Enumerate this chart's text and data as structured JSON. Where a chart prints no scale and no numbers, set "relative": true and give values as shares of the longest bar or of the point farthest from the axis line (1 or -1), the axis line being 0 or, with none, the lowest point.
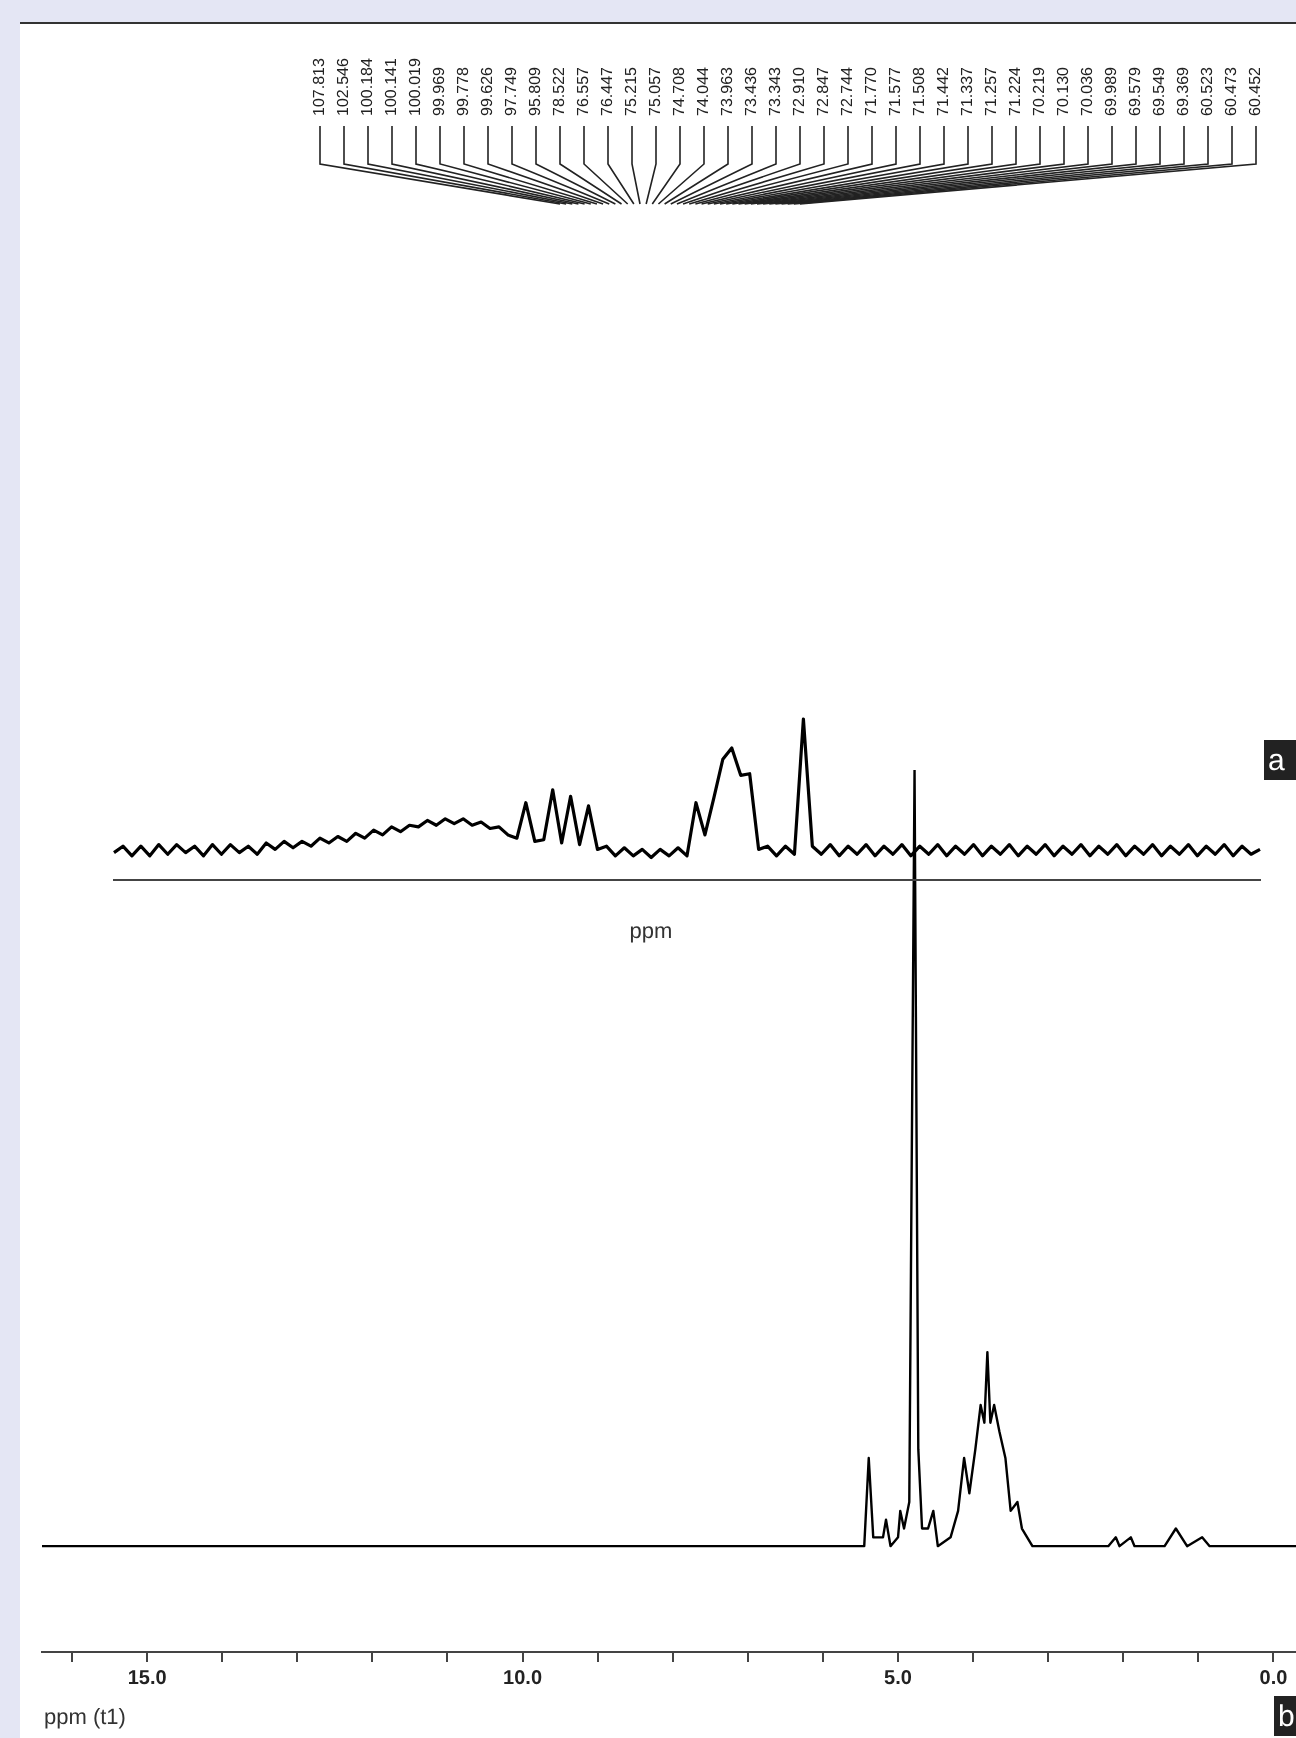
{
  "chart_data": [
    {
      "type": "line",
      "xlabel": "ppm",
      "relative": true,
      "marker": "none",
      "tick_labels": false,
      "categories": [
        null,
        null,
        null,
        null,
        null,
        null,
        null,
        null,
        null,
        null,
        null,
        null,
        null,
        null,
        null,
        null,
        null,
        null,
        null,
        null,
        null,
        null,
        null,
        null,
        null,
        null,
        null,
        null,
        null,
        null,
        null,
        null,
        null,
        null,
        null,
        null,
        null,
        null,
        null,
        null,
        null,
        null,
        null,
        null,
        null,
        null,
        null,
        null,
        null,
        null,
        null,
        null,
        null,
        null,
        null,
        null,
        null,
        null,
        null,
        null,
        null,
        null,
        null,
        null,
        null,
        null,
        null,
        null,
        null,
        null,
        null,
        null,
        null,
        null,
        null,
        null,
        null,
        null,
        null,
        null,
        null,
        null,
        null,
        null,
        null,
        null,
        null,
        null,
        null,
        null,
        null,
        null,
        null,
        null,
        null,
        null,
        null,
        null,
        null,
        null,
        null,
        null,
        null,
        null,
        null,
        null,
        null,
        null,
        null,
        null,
        null,
        null,
        null,
        null,
        null,
        null,
        null,
        null,
        null,
        null,
        null,
        null,
        null,
        null,
        null,
        null,
        null,
        null,
        null
      ],
      "series": [
        {
          "color": "#000000",
          "values": [
            0.17,
            0.21,
            0.15,
            0.21,
            0.15,
            0.22,
            0.16,
            0.22,
            0.17,
            0.21,
            0.15,
            0.22,
            0.16,
            0.22,
            0.17,
            0.21,
            0.16,
            0.23,
            0.19,
            0.24,
            0.2,
            0.24,
            0.21,
            0.26,
            0.23,
            0.27,
            0.24,
            0.29,
            0.26,
            0.31,
            0.28,
            0.33,
            0.3,
            0.34,
            0.33,
            0.37,
            0.34,
            0.38,
            0.35,
            0.38,
            0.34,
            0.36,
            0.32,
            0.33,
            0.28,
            0.26,
            0.48,
            0.24,
            0.25,
            0.56,
            0.23,
            0.52,
            0.22,
            0.46,
            0.19,
            0.21,
            0.15,
            0.2,
            0.15,
            0.19,
            0.14,
            0.19,
            0.15,
            0.2,
            0.15,
            0.48,
            0.28,
            0.51,
            0.75,
            0.82,
            0.65,
            0.66,
            0.19,
            0.21,
            0.15,
            0.21,
            0.16,
            1,
            0.21,
            0.16,
            0.22,
            0.15,
            0.21,
            0.16,
            0.22,
            0.15,
            0.21,
            0.16,
            0.22,
            0.15,
            0.21,
            0.16,
            0.22,
            0.15,
            0.21,
            0.16,
            0.22,
            0.15,
            0.21,
            0.16,
            0.22,
            0.15,
            0.21,
            0.16,
            0.22,
            0.15,
            0.21,
            0.16,
            0.22,
            0.15,
            0.21,
            0.16,
            0.22,
            0.15,
            0.21,
            0.16,
            0.22,
            0.15,
            0.21,
            0.16,
            0.22,
            0.15,
            0.21,
            0.16,
            0.22,
            0.15,
            0.21,
            0.16,
            0.19
          ]
        }
      ],
      "annotations": [
        "107.813",
        "102.546",
        "100.184",
        "100.141",
        "100.019",
        "99.969",
        "99.778",
        "99.626",
        "97.749",
        "95.809",
        "78.522",
        "76.557",
        "76.447",
        "75.215",
        "75.057",
        "74.708",
        "74.044",
        "73.963",
        "73.436",
        "73.343",
        "72.910",
        "72.847",
        "72.744",
        "71.770",
        "71.577",
        "71.508",
        "71.442",
        "71.337",
        "71.257",
        "71.224",
        "70.219",
        "70.130",
        "70.036",
        "69.989",
        "69.579",
        "69.549",
        "69.369",
        "60.523",
        "60.473",
        "60.452",
        "a"
      ]
    },
    {
      "type": "line",
      "xlabel": "ppm (t1)",
      "relative": true,
      "marker": "none",
      "tick_labels": "x",
      "x": [
        16.4,
        5.6,
        5.45,
        5.39,
        5.33,
        5.2,
        5.16,
        5.1,
        5.0,
        4.97,
        4.92,
        4.85,
        4.78,
        4.73,
        4.68,
        4.6,
        4.53,
        4.47,
        4.3,
        4.2,
        4.12,
        4.05,
        3.97,
        3.9,
        3.85,
        3.81,
        3.77,
        3.72,
        3.65,
        3.57,
        3.5,
        3.41,
        3.35,
        3.21,
        2.2,
        2.1,
        2.05,
        1.9,
        1.85,
        1.45,
        1.3,
        1.15,
        0.95,
        0.85,
        -0.3
      ],
      "series": [
        {
          "color": "#000000",
          "values": [
            0.12,
            0.12,
            0.12,
            0.22,
            0.13,
            0.13,
            0.15,
            0.12,
            0.13,
            0.16,
            0.14,
            0.17,
            1,
            0.23,
            0.14,
            0.14,
            0.16,
            0.12,
            0.13,
            0.16,
            0.22,
            0.18,
            0.23,
            0.28,
            0.26,
            0.34,
            0.26,
            0.28,
            0.25,
            0.22,
            0.16,
            0.17,
            0.14,
            0.12,
            0.12,
            0.13,
            0.12,
            0.13,
            0.12,
            0.12,
            0.14,
            0.12,
            0.13,
            0.12,
            0.12
          ]
        }
      ],
      "xlim": [
        16.4,
        -0.3
      ],
      "xticks": [
        {
          "value": 16,
          "label": null
        },
        {
          "value": 15,
          "label": "15.0"
        },
        {
          "value": 14,
          "label": null
        },
        {
          "value": 13,
          "label": null
        },
        {
          "value": 12,
          "label": null
        },
        {
          "value": 11,
          "label": null
        },
        {
          "value": 10,
          "label": "10.0"
        },
        {
          "value": 9,
          "label": null
        },
        {
          "value": 8,
          "label": null
        },
        {
          "value": 7,
          "label": null
        },
        {
          "value": 6,
          "label": null
        },
        {
          "value": 5,
          "label": "5.0"
        },
        {
          "value": 4,
          "label": null
        },
        {
          "value": 3,
          "label": null
        },
        {
          "value": 2,
          "label": null
        },
        {
          "value": 1,
          "label": null
        },
        {
          "value": 0,
          "label": "0.0"
        }
      ],
      "annotations": [
        "b"
      ]
    }
  ]
}
